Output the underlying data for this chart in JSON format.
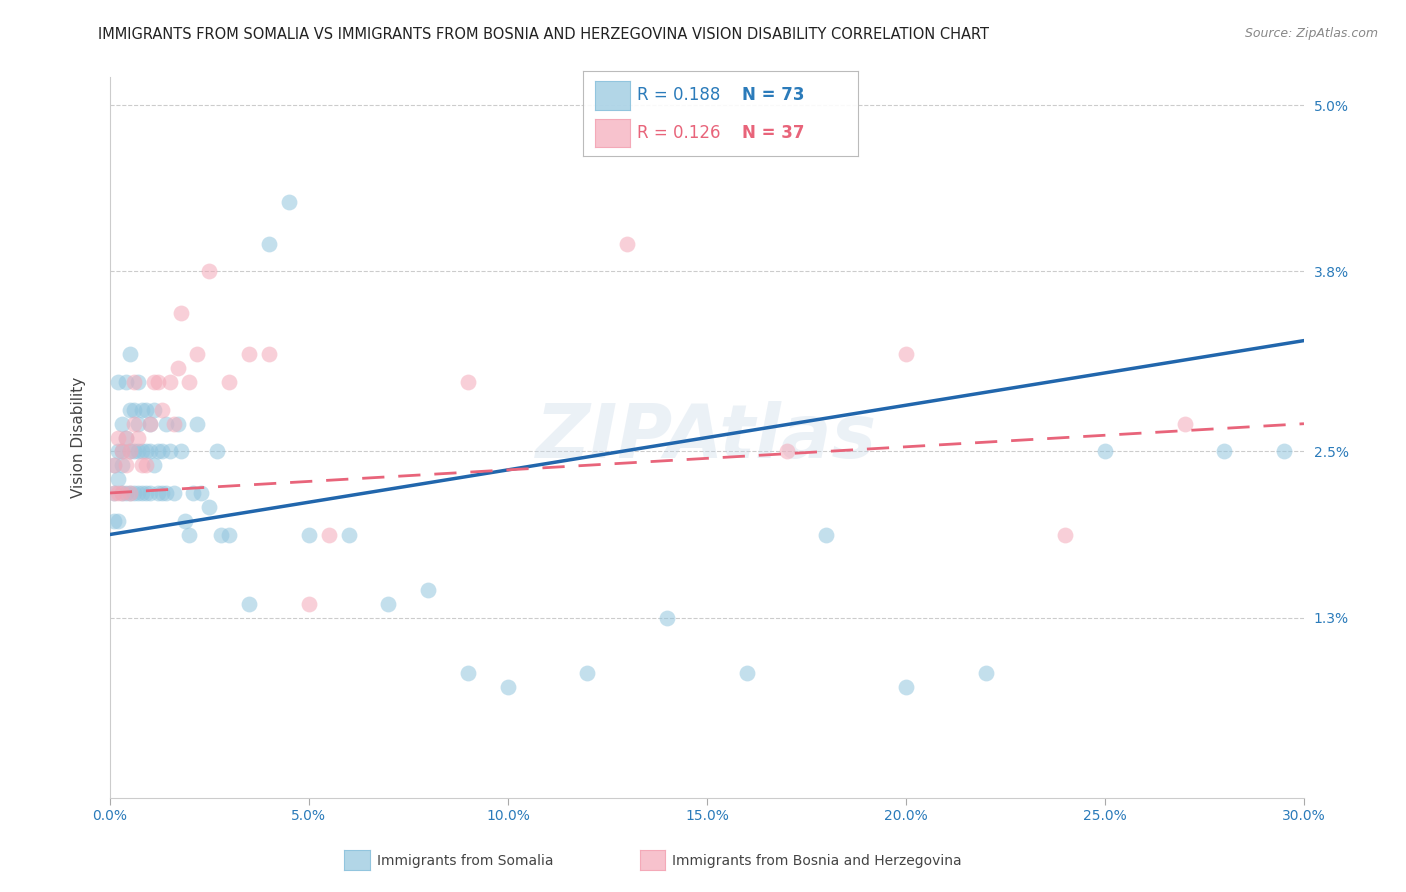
{
  "title": "IMMIGRANTS FROM SOMALIA VS IMMIGRANTS FROM BOSNIA AND HERZEGOVINA VISION DISABILITY CORRELATION CHART",
  "source": "Source: ZipAtlas.com",
  "ylabel": "Vision Disability",
  "x_min": 0.0,
  "x_max": 0.3,
  "y_min": 0.0,
  "y_max": 0.05,
  "x_ticks": [
    0.0,
    0.05,
    0.1,
    0.15,
    0.2,
    0.25,
    0.3
  ],
  "x_tick_labels": [
    "0.0%",
    "5.0%",
    "10.0%",
    "15.0%",
    "20.0%",
    "25.0%",
    "30.0%"
  ],
  "y_ticks": [
    0.013,
    0.025,
    0.038,
    0.05
  ],
  "y_tick_labels": [
    "1.3%",
    "2.5%",
    "3.8%",
    "5.0%"
  ],
  "legend_R1": "R = 0.188",
  "legend_N1": "N = 73",
  "legend_R2": "R = 0.126",
  "legend_N2": "N = 37",
  "blue_scatter_color": "#92c5de",
  "pink_scatter_color": "#f4a9b8",
  "blue_line_color": "#2166ac",
  "pink_line_color": "#e8647a",
  "watermark": "ZIPAtlas",
  "background_color": "#ffffff",
  "somalia_x": [
    0.001,
    0.001,
    0.001,
    0.002,
    0.002,
    0.002,
    0.002,
    0.003,
    0.003,
    0.003,
    0.003,
    0.004,
    0.004,
    0.004,
    0.005,
    0.005,
    0.005,
    0.005,
    0.006,
    0.006,
    0.006,
    0.007,
    0.007,
    0.007,
    0.007,
    0.008,
    0.008,
    0.008,
    0.009,
    0.009,
    0.009,
    0.01,
    0.01,
    0.01,
    0.011,
    0.011,
    0.012,
    0.012,
    0.013,
    0.013,
    0.014,
    0.014,
    0.015,
    0.016,
    0.017,
    0.018,
    0.019,
    0.02,
    0.021,
    0.022,
    0.023,
    0.025,
    0.027,
    0.028,
    0.03,
    0.035,
    0.04,
    0.045,
    0.05,
    0.06,
    0.07,
    0.08,
    0.09,
    0.1,
    0.12,
    0.14,
    0.16,
    0.18,
    0.2,
    0.22,
    0.25,
    0.28,
    0.295
  ],
  "somalia_y": [
    0.024,
    0.022,
    0.02,
    0.03,
    0.025,
    0.023,
    0.02,
    0.027,
    0.025,
    0.024,
    0.022,
    0.03,
    0.026,
    0.022,
    0.032,
    0.028,
    0.025,
    0.022,
    0.028,
    0.025,
    0.022,
    0.03,
    0.027,
    0.025,
    0.022,
    0.028,
    0.025,
    0.022,
    0.028,
    0.025,
    0.022,
    0.027,
    0.025,
    0.022,
    0.028,
    0.024,
    0.025,
    0.022,
    0.025,
    0.022,
    0.027,
    0.022,
    0.025,
    0.022,
    0.027,
    0.025,
    0.02,
    0.019,
    0.022,
    0.027,
    0.022,
    0.021,
    0.025,
    0.019,
    0.019,
    0.014,
    0.04,
    0.043,
    0.019,
    0.019,
    0.014,
    0.015,
    0.009,
    0.008,
    0.009,
    0.013,
    0.009,
    0.019,
    0.008,
    0.009,
    0.025,
    0.025,
    0.025
  ],
  "bosnia_x": [
    0.001,
    0.001,
    0.002,
    0.002,
    0.003,
    0.003,
    0.004,
    0.004,
    0.005,
    0.005,
    0.006,
    0.006,
    0.007,
    0.008,
    0.009,
    0.01,
    0.011,
    0.012,
    0.013,
    0.015,
    0.016,
    0.017,
    0.018,
    0.02,
    0.022,
    0.025,
    0.03,
    0.035,
    0.04,
    0.05,
    0.055,
    0.09,
    0.13,
    0.17,
    0.2,
    0.24,
    0.27
  ],
  "bosnia_y": [
    0.024,
    0.022,
    0.026,
    0.022,
    0.025,
    0.022,
    0.026,
    0.024,
    0.025,
    0.022,
    0.03,
    0.027,
    0.026,
    0.024,
    0.024,
    0.027,
    0.03,
    0.03,
    0.028,
    0.03,
    0.027,
    0.031,
    0.035,
    0.03,
    0.032,
    0.038,
    0.03,
    0.032,
    0.032,
    0.014,
    0.019,
    0.03,
    0.04,
    0.025,
    0.032,
    0.019,
    0.027
  ],
  "blue_trend_x0": 0.0,
  "blue_trend_y0": 0.019,
  "blue_trend_x1": 0.3,
  "blue_trend_y1": 0.033,
  "pink_trend_x0": 0.0,
  "pink_trend_y0": 0.022,
  "pink_trend_x1": 0.3,
  "pink_trend_y1": 0.027
}
